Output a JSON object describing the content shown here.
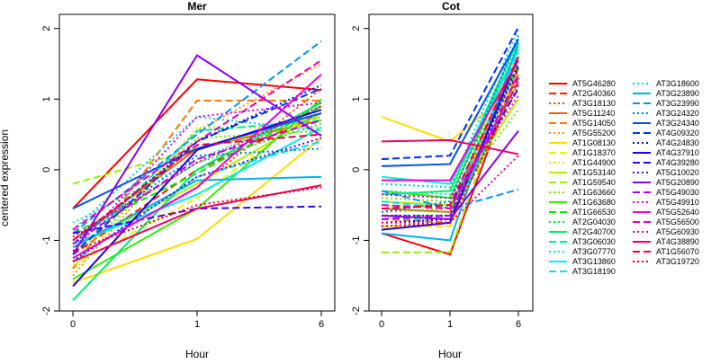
{
  "y_label": "centered expression",
  "x_label": "Hour",
  "legend_entries": [
    {
      "name": "AT5G46280",
      "color": "#ff0000",
      "dash": "solid"
    },
    {
      "name": "AT2G40360",
      "color": "#ff1e00",
      "dash": "dashed"
    },
    {
      "name": "AT3G18130",
      "color": "#ff3c00",
      "dash": "dotted"
    },
    {
      "name": "AT5G11240",
      "color": "#ff5a00",
      "dash": "solid"
    },
    {
      "name": "AT5G14050",
      "color": "#ff7800",
      "dash": "dashed"
    },
    {
      "name": "AT5G55200",
      "color": "#ff9600",
      "dash": "dotted"
    },
    {
      "name": "AT1G08130",
      "color": "#ffdc00",
      "dash": "solid"
    },
    {
      "name": "AT1G18370",
      "color": "#f0f000",
      "dash": "dashed"
    },
    {
      "name": "AT1G44900",
      "color": "#d2f000",
      "dash": "dotted"
    },
    {
      "name": "AT1G53140",
      "color": "#b4f000",
      "dash": "solid"
    },
    {
      "name": "AT1G59540",
      "color": "#96f000",
      "dash": "dashed"
    },
    {
      "name": "AT1G63660",
      "color": "#64f000",
      "dash": "dotted"
    },
    {
      "name": "AT1G63680",
      "color": "#32f000",
      "dash": "solid"
    },
    {
      "name": "AT1G66530",
      "color": "#00f000",
      "dash": "dashed"
    },
    {
      "name": "AT2G04030",
      "color": "#00f032",
      "dash": "dotted"
    },
    {
      "name": "AT2G40700",
      "color": "#00f064",
      "dash": "solid"
    },
    {
      "name": "AT3G06030",
      "color": "#00f096",
      "dash": "dashed"
    },
    {
      "name": "AT3G07770",
      "color": "#00f0c8",
      "dash": "dotted"
    },
    {
      "name": "AT3G13860",
      "color": "#00f0e6",
      "dash": "solid"
    },
    {
      "name": "AT3G18190",
      "color": "#00e6f0",
      "dash": "dashed"
    },
    {
      "name": "AT3G18600",
      "color": "#00d2f0",
      "dash": "dotted"
    },
    {
      "name": "AT3G23890",
      "color": "#00b4f0",
      "dash": "solid"
    },
    {
      "name": "AT3G23990",
      "color": "#0096f0",
      "dash": "dashed"
    },
    {
      "name": "AT3G24320",
      "color": "#0078f0",
      "dash": "dotted"
    },
    {
      "name": "AT3G24340",
      "color": "#0050f0",
      "dash": "solid"
    },
    {
      "name": "AT4G09320",
      "color": "#0032f0",
      "dash": "dashed"
    },
    {
      "name": "AT4G24830",
      "color": "#0014f0",
      "dash": "dotted"
    },
    {
      "name": "AT4G37910",
      "color": "#1e00f0",
      "dash": "solid"
    },
    {
      "name": "AT4G39280",
      "color": "#3c00f0",
      "dash": "dashed"
    },
    {
      "name": "AT5G10020",
      "color": "#6400f0",
      "dash": "dotted"
    },
    {
      "name": "AT5G20890",
      "color": "#8c00f0",
      "dash": "solid"
    },
    {
      "name": "AT5G49030",
      "color": "#b400f0",
      "dash": "dashed"
    },
    {
      "name": "AT5G49910",
      "color": "#dc00f0",
      "dash": "dotted"
    },
    {
      "name": "AT5G52640",
      "color": "#f000dc",
      "dash": "solid"
    },
    {
      "name": "AT5G56500",
      "color": "#f000b4",
      "dash": "dashed"
    },
    {
      "name": "AT5G60930",
      "color": "#f0008c",
      "dash": "dotted"
    },
    {
      "name": "AT4G38890",
      "color": "#f00064",
      "dash": "solid"
    },
    {
      "name": "AT1G56070",
      "color": "#f0003c",
      "dash": "dashed"
    },
    {
      "name": "AT3G19720",
      "color": "#f00014",
      "dash": "dotted"
    }
  ],
  "chart_data": [
    {
      "type": "line",
      "title": "Mer",
      "xlabel": "Hour",
      "ylabel": "centered expression",
      "x": [
        0,
        1,
        6
      ],
      "x_tick_labels": [
        "0",
        "1",
        "6"
      ],
      "y_ticks": [
        -2,
        -1,
        0,
        1,
        2
      ],
      "ylim": [
        -2.0,
        2.2
      ],
      "grid": false,
      "series": [
        {
          "name": "AT5G46280",
          "values": [
            -0.55,
            1.28,
            1.13
          ]
        },
        {
          "name": "AT2G40360",
          "values": [
            -1.2,
            0.0,
            0.8
          ]
        },
        {
          "name": "AT3G18130",
          "values": [
            -1.25,
            -0.25,
            1.15
          ]
        },
        {
          "name": "AT5G11240",
          "values": [
            -1.0,
            0.3,
            0.7
          ]
        },
        {
          "name": "AT5G14050",
          "values": [
            -1.4,
            0.98,
            0.98
          ]
        },
        {
          "name": "AT5G55200",
          "values": [
            -1.5,
            0.55,
            1.5
          ]
        },
        {
          "name": "AT1G08130",
          "values": [
            -1.6,
            -0.98,
            0.45
          ]
        },
        {
          "name": "AT1G18370",
          "values": [
            -1.35,
            -0.4,
            0.9
          ]
        },
        {
          "name": "AT1G44900",
          "values": [
            -1.45,
            0.6,
            0.6
          ]
        },
        {
          "name": "AT1G53140",
          "values": [
            -1.1,
            -0.2,
            0.8
          ]
        },
        {
          "name": "AT1G59540",
          "values": [
            -0.2,
            0.3,
            0.75
          ]
        },
        {
          "name": "AT1G63660",
          "values": [
            -1.3,
            0.45,
            0.55
          ]
        },
        {
          "name": "AT1G63680",
          "values": [
            -1.55,
            -0.55,
            1.0
          ]
        },
        {
          "name": "AT1G66530",
          "values": [
            -0.9,
            -0.05,
            0.9
          ]
        },
        {
          "name": "AT2G04030",
          "values": [
            -1.0,
            0.1,
            0.65
          ]
        },
        {
          "name": "AT2G40700",
          "values": [
            -1.85,
            0.0,
            0.95
          ]
        },
        {
          "name": "AT3G06030",
          "values": [
            -1.2,
            0.55,
            0.7
          ]
        },
        {
          "name": "AT3G07770",
          "values": [
            -0.75,
            0.15,
            0.85
          ]
        },
        {
          "name": "AT3G13860",
          "values": [
            -1.05,
            -0.35,
            0.6
          ]
        },
        {
          "name": "AT3G18190",
          "values": [
            -1.3,
            -0.1,
            0.4
          ]
        },
        {
          "name": "AT3G18600",
          "values": [
            -0.85,
            0.75,
            0.55
          ]
        },
        {
          "name": "AT3G23890",
          "values": [
            -1.1,
            -0.15,
            -0.1
          ]
        },
        {
          "name": "AT3G23990",
          "values": [
            -0.9,
            0.5,
            1.82
          ]
        },
        {
          "name": "AT3G24320",
          "values": [
            -1.0,
            0.2,
            0.3
          ]
        },
        {
          "name": "AT3G24340",
          "values": [
            -0.55,
            0.3,
            0.8
          ]
        },
        {
          "name": "AT4G09320",
          "values": [
            -1.2,
            0.4,
            1.15
          ]
        },
        {
          "name": "AT4G24830",
          "values": [
            -1.05,
            0.4,
            1.2
          ]
        },
        {
          "name": "AT4G37910",
          "values": [
            -1.65,
            0.28,
            0.85
          ]
        },
        {
          "name": "AT4G39280",
          "values": [
            -0.9,
            -0.55,
            -0.52
          ]
        },
        {
          "name": "AT5G10020",
          "values": [
            -1.3,
            -0.1,
            0.45
          ]
        },
        {
          "name": "AT5G20890",
          "values": [
            -1.2,
            1.62,
            0.48
          ]
        },
        {
          "name": "AT5G49030",
          "values": [
            -1.05,
            0.15,
            0.7
          ]
        },
        {
          "name": "AT5G49910",
          "values": [
            -1.15,
            0.75,
            0.95
          ]
        },
        {
          "name": "AT5G52640",
          "values": [
            -1.25,
            -0.25,
            1.35
          ]
        },
        {
          "name": "AT5G56500",
          "values": [
            -0.85,
            0.4,
            1.55
          ]
        },
        {
          "name": "AT5G60930",
          "values": [
            -0.95,
            0.1,
            0.9
          ]
        },
        {
          "name": "AT4G38890",
          "values": [
            -1.3,
            -0.55,
            -0.22
          ]
        },
        {
          "name": "AT1G56070",
          "values": [
            -1.0,
            0.35,
            0.5
          ]
        },
        {
          "name": "AT3G19720",
          "values": [
            -1.15,
            -0.5,
            -0.25
          ]
        }
      ]
    },
    {
      "type": "line",
      "title": "Cot",
      "xlabel": "Hour",
      "ylabel": "",
      "x": [
        0,
        1,
        6
      ],
      "x_tick_labels": [
        "0",
        "1",
        "6"
      ],
      "y_ticks": [
        -2,
        -1,
        0,
        1,
        2
      ],
      "ylim": [
        -2.0,
        2.2
      ],
      "grid": false,
      "series": [
        {
          "name": "AT5G46280",
          "values": [
            -0.9,
            -1.2,
            1.45
          ]
        },
        {
          "name": "AT2G40360",
          "values": [
            -0.8,
            -0.8,
            1.3
          ]
        },
        {
          "name": "AT3G18130",
          "values": [
            -0.75,
            -0.7,
            1.55
          ]
        },
        {
          "name": "AT5G11240",
          "values": [
            -0.55,
            -0.6,
            1.6
          ]
        },
        {
          "name": "AT5G14050",
          "values": [
            -0.7,
            -0.75,
            1.35
          ]
        },
        {
          "name": "AT5G55200",
          "values": [
            -0.6,
            -0.55,
            1.7
          ]
        },
        {
          "name": "AT1G08130",
          "values": [
            0.75,
            0.4,
            1.2
          ]
        },
        {
          "name": "AT1G18370",
          "values": [
            -0.8,
            -0.8,
            1.4
          ]
        },
        {
          "name": "AT1G44900",
          "values": [
            -0.5,
            -0.55,
            1.5
          ]
        },
        {
          "name": "AT1G53140",
          "values": [
            -0.45,
            -0.5,
            1.0
          ]
        },
        {
          "name": "AT1G59540",
          "values": [
            -1.17,
            -1.17,
            1.6
          ]
        },
        {
          "name": "AT1G63660",
          "values": [
            -0.4,
            -0.45,
            0.85
          ]
        },
        {
          "name": "AT1G63680",
          "values": [
            -0.3,
            -0.4,
            1.75
          ]
        },
        {
          "name": "AT1G66530",
          "values": [
            -0.65,
            -0.65,
            1.5
          ]
        },
        {
          "name": "AT2G04030",
          "values": [
            -0.55,
            -0.6,
            1.9
          ]
        },
        {
          "name": "AT2G40700",
          "values": [
            -0.35,
            -0.3,
            1.85
          ]
        },
        {
          "name": "AT3G06030",
          "values": [
            -0.7,
            -0.7,
            1.25
          ]
        },
        {
          "name": "AT3G07770",
          "values": [
            -0.3,
            -0.35,
            1.8
          ]
        },
        {
          "name": "AT3G13860",
          "values": [
            -0.1,
            -0.2,
            1.7
          ]
        },
        {
          "name": "AT3G18190",
          "values": [
            -0.45,
            -0.55,
            1.65
          ]
        },
        {
          "name": "AT3G18600",
          "values": [
            -0.2,
            -0.25,
            2.0
          ]
        },
        {
          "name": "AT3G23890",
          "values": [
            -0.9,
            -1.0,
            1.8
          ]
        },
        {
          "name": "AT3G23990",
          "values": [
            -0.3,
            -0.55,
            -0.28
          ]
        },
        {
          "name": "AT3G24320",
          "values": [
            -0.6,
            -0.45,
            1.9
          ]
        },
        {
          "name": "AT3G24340",
          "values": [
            0.05,
            0.08,
            1.85
          ]
        },
        {
          "name": "AT4G09320",
          "values": [
            0.15,
            0.2,
            2.02
          ]
        },
        {
          "name": "AT4G24830",
          "values": [
            -0.75,
            -0.7,
            1.5
          ]
        },
        {
          "name": "AT4G37910",
          "values": [
            -0.85,
            -0.75,
            1.6
          ]
        },
        {
          "name": "AT4G39280",
          "values": [
            -0.55,
            -0.5,
            1.15
          ]
        },
        {
          "name": "AT5G10020",
          "values": [
            -0.65,
            -0.65,
            1.45
          ]
        },
        {
          "name": "AT5G20890",
          "values": [
            -0.65,
            -0.7,
            0.55
          ]
        },
        {
          "name": "AT5G49030",
          "values": [
            -0.7,
            -0.65,
            1.35
          ]
        },
        {
          "name": "AT5G49910",
          "values": [
            -0.35,
            -0.4,
            1.05
          ]
        },
        {
          "name": "AT5G52640",
          "values": [
            -0.15,
            -0.15,
            1.55
          ]
        },
        {
          "name": "AT5G56500",
          "values": [
            -0.5,
            -0.55,
            1.25
          ]
        },
        {
          "name": "AT5G60930",
          "values": [
            -0.75,
            -0.75,
            0.2
          ]
        },
        {
          "name": "AT4G38890",
          "values": [
            0.4,
            0.42,
            0.22
          ]
        },
        {
          "name": "AT1G56070",
          "values": [
            -0.55,
            -0.5,
            1.6
          ]
        },
        {
          "name": "AT3G19720",
          "values": [
            -0.8,
            -0.75,
            1.2
          ]
        }
      ]
    }
  ]
}
